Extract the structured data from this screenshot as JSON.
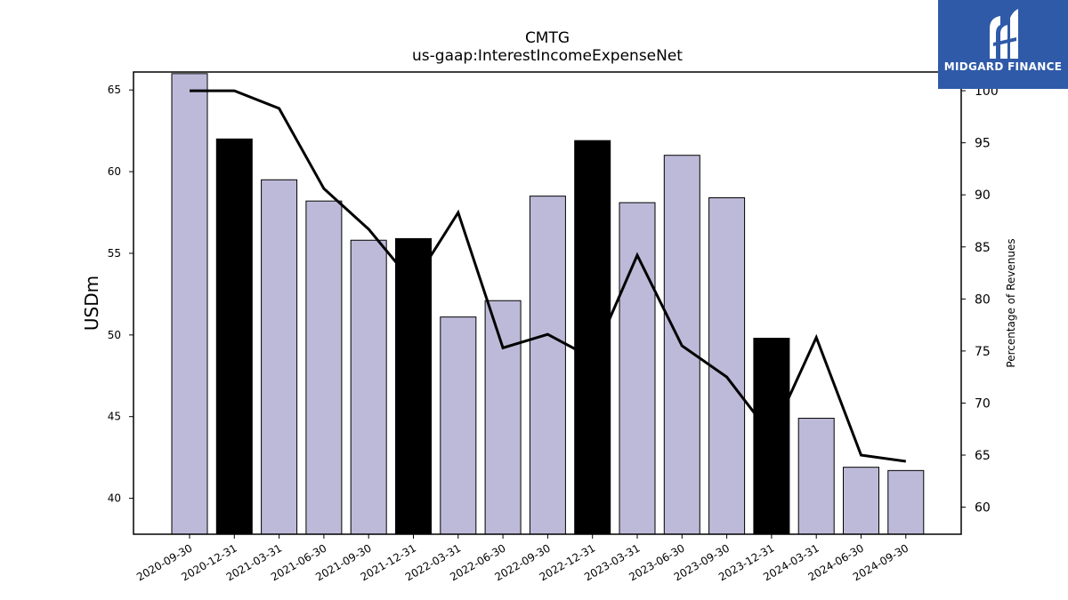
{
  "chart_data": {
    "type": "bar",
    "title": "CMTG",
    "subtitle": "us-gaap:InterestIncomeExpenseNet",
    "ylabel": "USDm",
    "y2label": "Percentage of Revenues",
    "categories": [
      "2020-09-30",
      "2020-12-31",
      "2021-03-31",
      "2021-06-30",
      "2021-09-30",
      "2021-12-31",
      "2022-03-31",
      "2022-06-30",
      "2022-09-30",
      "2022-12-31",
      "2023-03-31",
      "2023-06-30",
      "2023-09-30",
      "2023-12-31",
      "2024-03-31",
      "2024-06-30",
      "2024-09-30"
    ],
    "series": [
      {
        "type": "bar",
        "values": [
          66.0,
          62.0,
          59.5,
          58.2,
          55.8,
          55.9,
          51.1,
          52.1,
          58.5,
          61.9,
          58.1,
          61.0,
          58.4,
          49.8,
          44.9,
          41.9,
          41.7
        ]
      },
      {
        "type": "line",
        "axis": "right",
        "values": [
          100.0,
          100.0,
          98.3,
          90.6,
          86.7,
          81.5,
          88.3,
          75.3,
          76.6,
          74.3,
          84.2,
          75.5,
          72.5,
          66.9,
          76.3,
          65.0,
          64.4
        ]
      }
    ],
    "highlight_indices": [
      1,
      5,
      9,
      13
    ],
    "ylim": [
      37.8,
      66.1
    ],
    "y2lim": [
      57.4,
      101.8
    ],
    "yticks": [
      40,
      45,
      50,
      55,
      60,
      65
    ],
    "y2ticks": [
      60,
      65,
      70,
      75,
      80,
      85,
      90,
      95,
      100
    ],
    "grid": false,
    "colors": {
      "bar": "#bdbad9",
      "bar_highlight": "#000000",
      "line": "#000000"
    }
  },
  "logo": {
    "text": "MIDGARD FINANCE",
    "color": "#2f5aa8"
  }
}
